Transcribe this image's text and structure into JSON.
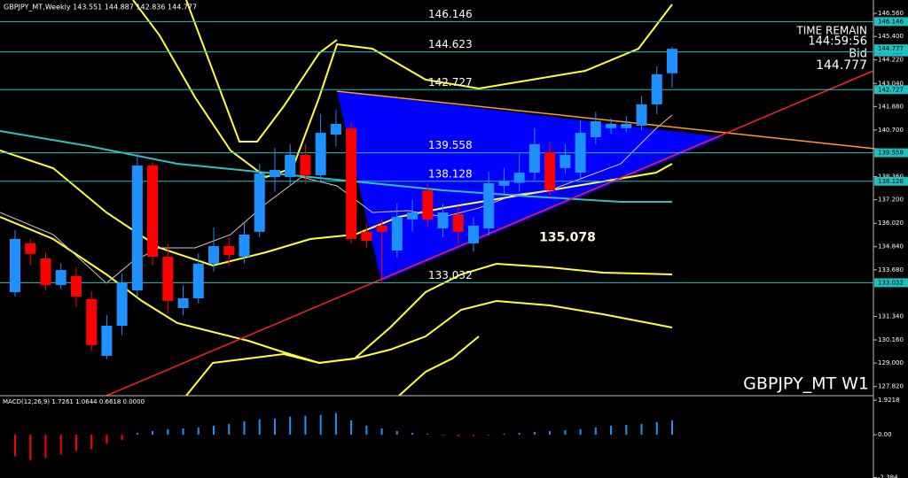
{
  "chart_data": {
    "type": "candlestick",
    "title": "GBPJPY_MT,Weekly  143.551 144.887 142.836 144.777",
    "symbol_label": "GBPJPY_MT W1",
    "time_remain_label": "TIME REMAIN",
    "time_remain": "144:59:56",
    "bid_label": "Bid",
    "bid": 144.777,
    "up_color": "#1e90ff",
    "down_color": "#ff0000",
    "categories": [
      null,
      null,
      null,
      null,
      null,
      null,
      null,
      null,
      null,
      null,
      null,
      null,
      null,
      null,
      null,
      null,
      null,
      null,
      null,
      null,
      null,
      null,
      null,
      null,
      null,
      null,
      null,
      null,
      null,
      null,
      null,
      null,
      null,
      null,
      null,
      null,
      null,
      null,
      null,
      null,
      null,
      null,
      null,
      null
    ],
    "open": [
      132.56,
      135.01,
      134.25,
      132.92,
      133.36,
      132.21,
      129.36,
      130.87,
      132.65,
      138.92,
      134.34,
      131.76,
      132.25,
      133.99,
      134.87,
      134.34,
      135.59,
      138.34,
      138.34,
      139.45,
      138.43,
      140.47,
      140.79,
      135.59,
      135.9,
      134.65,
      136.21,
      137.67,
      135.76,
      136.47,
      135.01,
      135.76,
      137.9,
      138.05,
      138.56,
      139.59,
      138.79,
      138.56,
      140.34,
      140.79,
      140.79,
      140.92,
      141.99,
      143.551
    ],
    "high": [
      135.67,
      135.23,
      134.56,
      134.0,
      133.8,
      132.6,
      131.4,
      133.5,
      139.5,
      139.1,
      135.0,
      132.9,
      134.5,
      135.8,
      135.3,
      136.0,
      139.0,
      139.8,
      140.0,
      140.0,
      141.5,
      141.7,
      141.1,
      136.0,
      136.2,
      137.0,
      137.2,
      138.0,
      137.0,
      136.9,
      136.3,
      138.6,
      138.8,
      139.5,
      140.8,
      140.1,
      140.0,
      141.2,
      141.6,
      141.3,
      141.4,
      142.4,
      143.9,
      144.887
    ],
    "low": [
      132.34,
      133.9,
      132.65,
      132.7,
      131.8,
      129.6,
      129.2,
      130.4,
      132.3,
      133.9,
      131.5,
      131.4,
      132.0,
      133.6,
      133.9,
      134.0,
      135.3,
      137.6,
      137.9,
      138.0,
      138.1,
      139.9,
      135.0,
      134.8,
      133.0,
      134.3,
      135.6,
      135.8,
      135.3,
      135.0,
      134.6,
      135.4,
      137.5,
      137.6,
      138.2,
      137.3,
      138.5,
      138.2,
      140.0,
      140.5,
      140.6,
      140.7,
      141.5,
      142.836
    ],
    "close": [
      135.23,
      134.48,
      132.92,
      133.67,
      132.34,
      129.9,
      130.87,
      133.01,
      138.92,
      134.34,
      132.12,
      132.25,
      133.99,
      134.87,
      134.43,
      135.45,
      138.52,
      138.7,
      139.45,
      138.43,
      140.56,
      141.01,
      135.23,
      135.14,
      135.59,
      136.34,
      136.56,
      136.21,
      136.56,
      135.59,
      135.9,
      138.03,
      138.12,
      138.56,
      139.99,
      137.67,
      139.45,
      140.56,
      141.14,
      141.01,
      141.01,
      141.99,
      143.5,
      144.777
    ],
    "ylim": [
      127.36,
      147.23
    ],
    "yticks": [
      {
        "value": 146.56,
        "label": "146.560"
      },
      {
        "value": 145.4,
        "label": "145.400"
      },
      {
        "value": 144.22,
        "label": "144.220"
      },
      {
        "value": 143.04,
        "label": "143.040"
      },
      {
        "value": 141.88,
        "label": "141.880"
      },
      {
        "value": 140.7,
        "label": "140.700"
      },
      {
        "value": 138.36,
        "label": "138.360"
      },
      {
        "value": 137.2,
        "label": "137.200"
      },
      {
        "value": 136.02,
        "label": "136.020"
      },
      {
        "value": 134.84,
        "label": "134.840"
      },
      {
        "value": 133.68,
        "label": "133.680"
      },
      {
        "value": 131.34,
        "label": "131.340"
      },
      {
        "value": 130.16,
        "label": "130.160"
      },
      {
        "value": 129,
        "label": "129.000"
      },
      {
        "value": 127.82,
        "label": "127.820"
      }
    ],
    "levels": [
      146.146,
      144.623,
      142.727,
      139.558,
      138.128,
      133.032
    ],
    "level_color": "#20c0c0",
    "annotation": 135.078,
    "macd": {
      "title": "MACD(12,26,9) 1.7261 1.0644 0.6618 0.0000",
      "values": [
        -1.2,
        -1.4,
        -1.3,
        -1.1,
        -0.9,
        -0.8,
        -0.5,
        -0.3,
        0.1,
        0.2,
        0.3,
        0.35,
        0.4,
        0.5,
        0.6,
        0.75,
        0.85,
        0.9,
        1.0,
        1.05,
        1.1,
        1.2,
        0.8,
        0.5,
        0.35,
        0.2,
        0.1,
        0.05,
        -0.05,
        -0.1,
        -0.08,
        -0.05,
        0.05,
        0.1,
        0.15,
        0.2,
        0.25,
        0.3,
        0.4,
        0.5,
        0.55,
        0.6,
        0.7,
        0.8
      ],
      "ylim": [
        -2.41,
        2.17
      ],
      "yticks": [
        1.9218,
        {
          "value": 0,
          "label": "0.00"
        },
        -2.384
      ]
    }
  }
}
